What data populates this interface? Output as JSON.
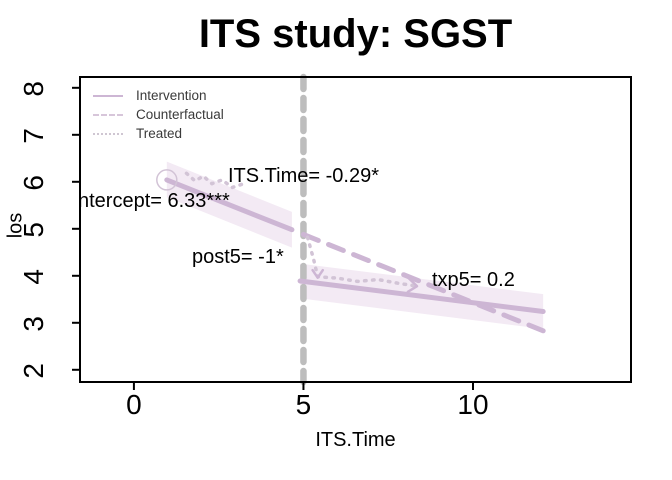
{
  "title": "ITS study: SGST",
  "axes": {
    "x_label": "ITS.Time",
    "y_label": "los"
  },
  "legend": {
    "items": [
      {
        "label": "Intervention",
        "style": "solid"
      },
      {
        "label": "Counterfactual",
        "style": "dashed"
      },
      {
        "label": "Treated",
        "style": "dotted"
      }
    ]
  },
  "annotations": {
    "intercept": "ntercept= 6.33***",
    "slope": "ITS.Time= -0.29*",
    "level_change": "post5= -1*",
    "slope_change": "txp5= 0.2"
  },
  "colors": {
    "line": "#cdb6d4",
    "treated": "#d2c4d6",
    "band": "#f3eaf4",
    "reference": "#bdbdbd",
    "point_stroke": "#d2c3d6",
    "axis": "#000000",
    "legend_text": "#3a3a3a"
  },
  "chart_data": {
    "type": "line",
    "title": "ITS study: SGST",
    "xlabel": "ITS.Time",
    "ylabel": "los",
    "xlim": [
      -1.59,
      14.66
    ],
    "ylim": [
      1.74,
      8.23
    ],
    "x_ticks": [
      0,
      5,
      10
    ],
    "y_ticks": [
      2,
      3,
      4,
      5,
      6,
      7,
      8
    ],
    "grid": false,
    "legend_position": "top-left",
    "intervention_x": 5,
    "model": {
      "intercept": 6.33,
      "slope_pre": -0.29,
      "post5": -1,
      "txp5": 0.2
    },
    "point": {
      "x": 0.97,
      "y": 6.04
    },
    "bands": [
      {
        "name": "pre-confidence",
        "points": [
          [
            0.97,
            6.43
          ],
          [
            4.66,
            5.36
          ],
          [
            4.66,
            4.6
          ],
          [
            0.97,
            5.67
          ]
        ]
      },
      {
        "name": "post-confidence",
        "points": [
          [
            4.9,
            4.26
          ],
          [
            12.07,
            3.61
          ],
          [
            12.07,
            2.87
          ],
          [
            4.9,
            3.52
          ]
        ]
      }
    ],
    "series": [
      {
        "name": "counterfactual",
        "style": "dashed",
        "x": [
          5,
          12.07
        ],
        "y": [
          4.88,
          2.83
        ]
      },
      {
        "name": "treated-pre",
        "style": "dotted",
        "x": [
          1.55,
          1.8,
          2.05,
          2.3,
          2.6,
          2.9,
          3.2
        ],
        "y": [
          6.18,
          6.02,
          6.12,
          5.96,
          6.04,
          5.88,
          5.95
        ]
      },
      {
        "name": "treated-post",
        "style": "dotted",
        "x": [
          5.12,
          5.3,
          5.42,
          6.0,
          6.6,
          7.2,
          7.8,
          8.35
        ],
        "y": [
          4.82,
          4.35,
          3.98,
          3.95,
          3.88,
          3.92,
          3.84,
          3.78
        ]
      },
      {
        "name": "intervention-pre",
        "style": "solid",
        "x": [
          0.97,
          4.66
        ],
        "y": [
          6.04,
          4.98
        ]
      },
      {
        "name": "intervention-post",
        "style": "solid",
        "x": [
          4.9,
          12.07
        ],
        "y": [
          3.89,
          3.24
        ]
      }
    ],
    "arrow_marks": [
      {
        "name": "drop-arrowhead",
        "points": [
          [
            5.27,
            4.12
          ],
          [
            5.42,
            3.96
          ],
          [
            5.57,
            4.12
          ]
        ]
      },
      {
        "name": "treated-arrowhead",
        "points": [
          [
            8.1,
            3.95
          ],
          [
            8.35,
            3.78
          ],
          [
            8.08,
            3.66
          ]
        ]
      }
    ]
  }
}
